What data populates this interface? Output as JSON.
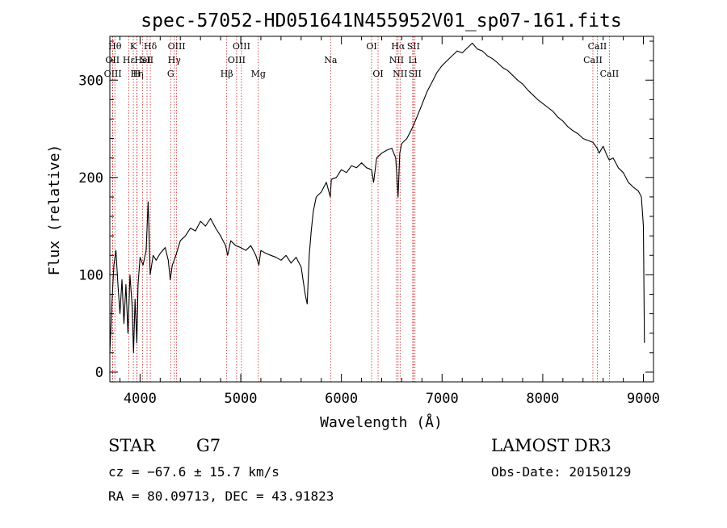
{
  "chart_data": {
    "type": "line",
    "title": "spec-57052-HD051641N455952V01_sp07-161.fits",
    "xlabel": "Wavelength (Å)",
    "ylabel": "Flux (relative)",
    "xlim": [
      3700,
      9100
    ],
    "ylim": [
      -10,
      345
    ],
    "x_ticks": [
      4000,
      5000,
      6000,
      7000,
      8000,
      9000
    ],
    "x_tick_labels": [
      "4000",
      "5000",
      "6000",
      "7000",
      "8000",
      "9000"
    ],
    "y_ticks": [
      0,
      100,
      200,
      300
    ],
    "y_tick_labels": [
      "0",
      "100",
      "200",
      "300"
    ],
    "grid": false,
    "series": [
      {
        "color": "#000000",
        "points": [
          [
            3700,
            20
          ],
          [
            3720,
            70
          ],
          [
            3740,
            110
          ],
          [
            3760,
            125
          ],
          [
            3780,
            90
          ],
          [
            3800,
            60
          ],
          [
            3820,
            95
          ],
          [
            3840,
            50
          ],
          [
            3860,
            90
          ],
          [
            3880,
            40
          ],
          [
            3900,
            100
          ],
          [
            3920,
            70
          ],
          [
            3935,
            20
          ],
          [
            3950,
            75
          ],
          [
            3968,
            30
          ],
          [
            3980,
            90
          ],
          [
            4000,
            118
          ],
          [
            4030,
            110
          ],
          [
            4060,
            125
          ],
          [
            4080,
            175
          ],
          [
            4100,
            100
          ],
          [
            4130,
            120
          ],
          [
            4160,
            115
          ],
          [
            4200,
            122
          ],
          [
            4250,
            128
          ],
          [
            4280,
            115
          ],
          [
            4300,
            95
          ],
          [
            4320,
            110
          ],
          [
            4350,
            118
          ],
          [
            4400,
            135
          ],
          [
            4450,
            140
          ],
          [
            4500,
            148
          ],
          [
            4550,
            145
          ],
          [
            4600,
            155
          ],
          [
            4650,
            150
          ],
          [
            4700,
            158
          ],
          [
            4750,
            148
          ],
          [
            4800,
            140
          ],
          [
            4850,
            130
          ],
          [
            4870,
            120
          ],
          [
            4900,
            135
          ],
          [
            4950,
            130
          ],
          [
            5000,
            128
          ],
          [
            5050,
            125
          ],
          [
            5100,
            130
          ],
          [
            5150,
            120
          ],
          [
            5180,
            110
          ],
          [
            5200,
            125
          ],
          [
            5250,
            122
          ],
          [
            5300,
            120
          ],
          [
            5350,
            118
          ],
          [
            5400,
            115
          ],
          [
            5450,
            120
          ],
          [
            5500,
            112
          ],
          [
            5550,
            118
          ],
          [
            5600,
            108
          ],
          [
            5640,
            80
          ],
          [
            5660,
            70
          ],
          [
            5680,
            120
          ],
          [
            5700,
            145
          ],
          [
            5720,
            165
          ],
          [
            5750,
            180
          ],
          [
            5800,
            185
          ],
          [
            5850,
            195
          ],
          [
            5890,
            180
          ],
          [
            5900,
            198
          ],
          [
            5950,
            200
          ],
          [
            6000,
            208
          ],
          [
            6050,
            205
          ],
          [
            6100,
            212
          ],
          [
            6150,
            210
          ],
          [
            6200,
            215
          ],
          [
            6250,
            210
          ],
          [
            6300,
            208
          ],
          [
            6320,
            195
          ],
          [
            6350,
            220
          ],
          [
            6400,
            225
          ],
          [
            6450,
            228
          ],
          [
            6500,
            230
          ],
          [
            6540,
            220
          ],
          [
            6563,
            180
          ],
          [
            6580,
            225
          ],
          [
            6600,
            235
          ],
          [
            6650,
            240
          ],
          [
            6700,
            250
          ],
          [
            6750,
            262
          ],
          [
            6800,
            275
          ],
          [
            6850,
            288
          ],
          [
            6900,
            298
          ],
          [
            6950,
            308
          ],
          [
            7000,
            315
          ],
          [
            7050,
            320
          ],
          [
            7100,
            325
          ],
          [
            7150,
            330
          ],
          [
            7200,
            328
          ],
          [
            7250,
            333
          ],
          [
            7300,
            338
          ],
          [
            7350,
            332
          ],
          [
            7400,
            330
          ],
          [
            7450,
            325
          ],
          [
            7500,
            322
          ],
          [
            7550,
            318
          ],
          [
            7600,
            313
          ],
          [
            7650,
            310
          ],
          [
            7700,
            305
          ],
          [
            7750,
            300
          ],
          [
            7800,
            296
          ],
          [
            7850,
            290
          ],
          [
            7900,
            285
          ],
          [
            7950,
            280
          ],
          [
            8000,
            276
          ],
          [
            8050,
            272
          ],
          [
            8100,
            268
          ],
          [
            8150,
            262
          ],
          [
            8200,
            258
          ],
          [
            8250,
            252
          ],
          [
            8300,
            248
          ],
          [
            8350,
            245
          ],
          [
            8400,
            240
          ],
          [
            8450,
            238
          ],
          [
            8500,
            236
          ],
          [
            8540,
            230
          ],
          [
            8560,
            225
          ],
          [
            8600,
            232
          ],
          [
            8640,
            222
          ],
          [
            8660,
            218
          ],
          [
            8700,
            220
          ],
          [
            8750,
            210
          ],
          [
            8800,
            205
          ],
          [
            8850,
            195
          ],
          [
            8900,
            190
          ],
          [
            8950,
            186
          ],
          [
            8980,
            180
          ],
          [
            9000,
            150
          ],
          [
            9010,
            30
          ]
        ]
      }
    ],
    "line_markers": [
      {
        "wavelength": 3750,
        "label": "Hθ",
        "row": 0
      },
      {
        "wavelength": 3726,
        "label": "OII",
        "row": 1
      },
      {
        "wavelength": 3729,
        "label": "OIII",
        "row": 2
      },
      {
        "wavelength": 3889,
        "label": "Hε",
        "row": 1
      },
      {
        "wavelength": 3933,
        "label": "K",
        "row": 0
      },
      {
        "wavelength": 3968,
        "label": "H",
        "row": 2
      },
      {
        "wavelength": 3970,
        "label": "Hη",
        "row": 2
      },
      {
        "wavelength": 4026,
        "label": "HeI",
        "row": 1
      },
      {
        "wavelength": 4069,
        "label": "SII",
        "row": 1
      },
      {
        "wavelength": 4102,
        "label": "Hδ",
        "row": 0
      },
      {
        "wavelength": 4304,
        "label": "G",
        "row": 2
      },
      {
        "wavelength": 4340,
        "label": "Hγ",
        "row": 1
      },
      {
        "wavelength": 4363,
        "label": "OIII",
        "row": 0
      },
      {
        "wavelength": 4861,
        "label": "Hβ",
        "row": 2
      },
      {
        "wavelength": 4959,
        "label": "OIII",
        "row": 1
      },
      {
        "wavelength": 5007,
        "label": "OIII",
        "row": 0
      },
      {
        "wavelength": 5175,
        "label": "Mg",
        "row": 2
      },
      {
        "wavelength": 5893,
        "label": "Na",
        "row": 1
      },
      {
        "wavelength": 6300,
        "label": "OI",
        "row": 0
      },
      {
        "wavelength": 6364,
        "label": "OI",
        "row": 2
      },
      {
        "wavelength": 6548,
        "label": "NII",
        "row": 1
      },
      {
        "wavelength": 6563,
        "label": "Hα",
        "row": 0
      },
      {
        "wavelength": 6583,
        "label": "NII",
        "row": 2
      },
      {
        "wavelength": 6708,
        "label": "Li",
        "row": 1
      },
      {
        "wavelength": 6716,
        "label": "SII",
        "row": 0
      },
      {
        "wavelength": 6731,
        "label": "SII",
        "row": 2
      },
      {
        "wavelength": 8498,
        "label": "CaII",
        "row": 1
      },
      {
        "wavelength": 8542,
        "label": "CaII",
        "row": 0
      },
      {
        "wavelength": 8662,
        "label": "CaII",
        "row": 2
      }
    ]
  },
  "info": {
    "object_class": "STAR",
    "subclass": "G7",
    "survey": "LAMOST DR3",
    "cz": "cz = −67.6 ± 15.7 km/s",
    "obs_date": "Obs-Date: 20150129",
    "coords": "RA =  80.09713, DEC =  43.91823"
  },
  "colors": {
    "spectrum": "#000000",
    "marker_lines": "#cc2222",
    "background": "#ffffff"
  }
}
